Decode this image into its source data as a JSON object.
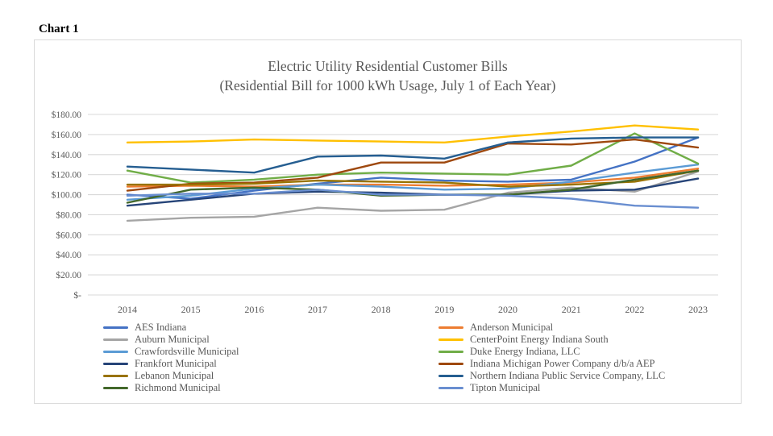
{
  "page": {
    "label": "Chart 1"
  },
  "chart_data": {
    "type": "line",
    "title": "Electric Utility Residential Customer Bills",
    "subtitle": "(Residential Bill for 1000 kWh Usage, July 1 of Each Year)",
    "x": [
      2014,
      2015,
      2016,
      2017,
      2018,
      2019,
      2020,
      2021,
      2022,
      2023
    ],
    "xlabel": "",
    "ylabel": "",
    "ylim": [
      0,
      180
    ],
    "ytick_step": 20,
    "ytick_labels": [
      "$-",
      "$20.00",
      "$40.00",
      "$60.00",
      "$80.00",
      "$100.00",
      "$120.00",
      "$140.00",
      "$160.00",
      "$180.00"
    ],
    "grid": "horizontal",
    "legend_position": "bottom, two columns, row-major alphabetical",
    "series": [
      {
        "name": "AES Indiana",
        "color": "#4472C4",
        "values": [
          100,
          96,
          104,
          111,
          117,
          114,
          113,
          115,
          133,
          157
        ]
      },
      {
        "name": "Anderson Municipal",
        "color": "#ED7D31",
        "values": [
          108,
          109,
          108,
          110,
          110,
          109,
          110,
          112,
          117,
          126
        ]
      },
      {
        "name": "Auburn Municipal",
        "color": "#A5A5A5",
        "values": [
          74,
          77,
          78,
          87,
          84,
          85,
          102,
          107,
          103,
          123
        ]
      },
      {
        "name": "CenterPoint Energy Indiana South",
        "color": "#FFC000",
        "values": [
          152,
          153,
          155,
          154,
          153,
          152,
          158,
          163,
          169,
          165
        ]
      },
      {
        "name": "Crawfordsville Municipal",
        "color": "#5B9BD5",
        "values": [
          95,
          99,
          106,
          110,
          108,
          105,
          106,
          113,
          122,
          130
        ]
      },
      {
        "name": "Duke Energy Indiana, LLC",
        "color": "#70AD47",
        "values": [
          124,
          112,
          115,
          120,
          122,
          121,
          120,
          129,
          161,
          131
        ]
      },
      {
        "name": "Frankfort Municipal",
        "color": "#264478",
        "values": [
          89,
          95,
          101,
          103,
          102,
          100,
          100,
          104,
          105,
          116
        ]
      },
      {
        "name": "Indiana Michigan Power Company d/b/a AEP",
        "color": "#9E480E",
        "values": [
          104,
          111,
          112,
          117,
          132,
          132,
          151,
          150,
          155,
          147
        ]
      },
      {
        "name": "Lebanon Municipal",
        "color": "#997300",
        "values": [
          110,
          110,
          111,
          114,
          113,
          112,
          108,
          110,
          113,
          124
        ]
      },
      {
        "name": "Northern Indiana Public Service Company, LLC",
        "color": "#255E91",
        "values": [
          128,
          125,
          122,
          138,
          139,
          136,
          152,
          156,
          157,
          157
        ]
      },
      {
        "name": "Richmond Municipal",
        "color": "#43682B",
        "values": [
          92,
          105,
          107,
          105,
          99,
          100,
          100,
          105,
          115,
          124
        ]
      },
      {
        "name": "Tipton Municipal",
        "color": "#698ED0",
        "values": [
          99,
          101,
          101,
          105,
          100,
          100,
          99,
          96,
          89,
          87
        ]
      }
    ]
  },
  "style": {
    "gridline_color": "#d9d9d9",
    "axis_text_color": "#595959"
  }
}
